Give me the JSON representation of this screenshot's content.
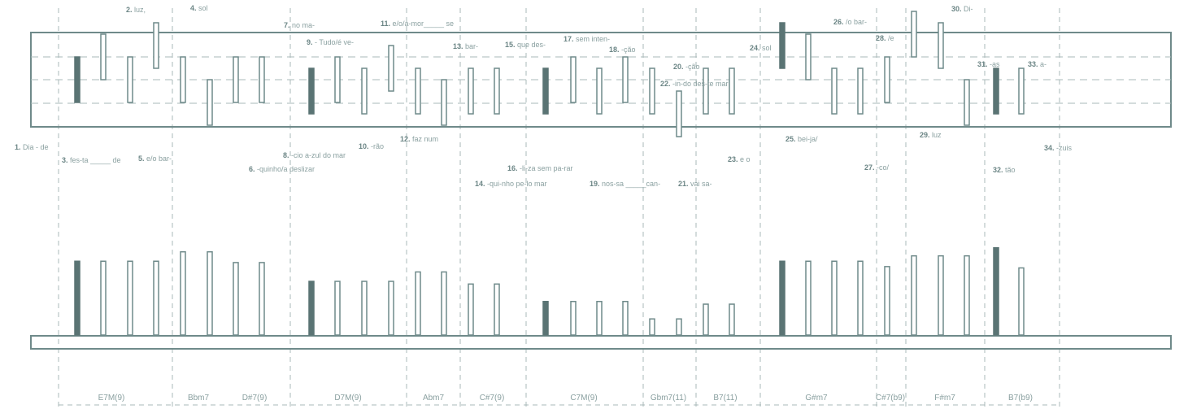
{
  "lyrics": [
    {
      "n": "1.",
      "t": "Dia - de"
    },
    {
      "n": "2.",
      "t": "luz,"
    },
    {
      "n": "3.",
      "t": "fes-ta _____ de"
    },
    {
      "n": "4.",
      "t": "sol"
    },
    {
      "n": "5.",
      "t": "e/o bar-"
    },
    {
      "n": "6.",
      "t": "-quinho/a deslizar"
    },
    {
      "n": "7.",
      "t": "no ma-"
    },
    {
      "n": "8.",
      "t": "-cio  a-zul do mar"
    },
    {
      "n": "9.",
      "t": "- Tudo/é ve-"
    },
    {
      "n": "10.",
      "t": "-rão"
    },
    {
      "n": "11.",
      "t": "e/o/a-mor_____ se"
    },
    {
      "n": "12.",
      "t": "faz num"
    },
    {
      "n": "13.",
      "t": "bar-"
    },
    {
      "n": "14.",
      "t": "-qui-nho pe-lo mar"
    },
    {
      "n": "15.",
      "t": "que des-"
    },
    {
      "n": "16.",
      "t": "-li-za sem pa-rar"
    },
    {
      "n": "17.",
      "t": "sem inten-"
    },
    {
      "n": "18.",
      "t": "-ção"
    },
    {
      "n": "19.",
      "t": "nos-sa _____can-"
    },
    {
      "n": "20.",
      "t": "-ção"
    },
    {
      "n": "21.",
      "t": "vai sa-"
    },
    {
      "n": "22.",
      "t": "-in-do des-te mar"
    },
    {
      "n": "23.",
      "t": "e o"
    },
    {
      "n": "24.",
      "t": "sol"
    },
    {
      "n": "25.",
      "t": "bei-ja/"
    },
    {
      "n": "26.",
      "t": "/o bar-"
    },
    {
      "n": "27.",
      "t": "-co/"
    },
    {
      "n": "28.",
      "t": "/e"
    },
    {
      "n": "29.",
      "t": "luz"
    },
    {
      "n": "30.",
      "t": "Di-"
    },
    {
      "n": "31.",
      "t": "-as"
    },
    {
      "n": "32.",
      "t": "tão"
    },
    {
      "n": "33.",
      "t": "a-"
    },
    {
      "n": "34.",
      "t": "-zuis"
    }
  ],
  "chords": [
    "E7M(9)",
    "Bbm7",
    "D#7(9)",
    "D7M(9)",
    "Abm7",
    "C#7(9)",
    "C7M(9)",
    "Gbm7(11)",
    "B7(11)",
    "G#m7",
    "C#7(b9)",
    "F#m7",
    "B7(b9)"
  ],
  "melody_pitch_levels": [
    5,
    7,
    5,
    8,
    5,
    3,
    5,
    5,
    4,
    5,
    4,
    6,
    4,
    3,
    4,
    4,
    4,
    5,
    4,
    5,
    4,
    2,
    4,
    4,
    8,
    7,
    4,
    4,
    5,
    9,
    8,
    3,
    4,
    4
  ],
  "chord_bar_heights": [
    0.55,
    0.55,
    0.55,
    0.55,
    0.62,
    0.62,
    0.54,
    0.54,
    0.4,
    0.4,
    0.4,
    0.4,
    0.47,
    0.47,
    0.38,
    0.38,
    0.25,
    0.25,
    0.25,
    0.25,
    0.12,
    0.12,
    0.23,
    0.23,
    0.55,
    0.55,
    0.55,
    0.55,
    0.51,
    0.59,
    0.59,
    0.59,
    0.65,
    0.5
  ],
  "colors": {
    "line": "#6f8a8a",
    "strong": "#5a7474",
    "guide": "#a8b8b8",
    "text": "#8aa0a0"
  }
}
